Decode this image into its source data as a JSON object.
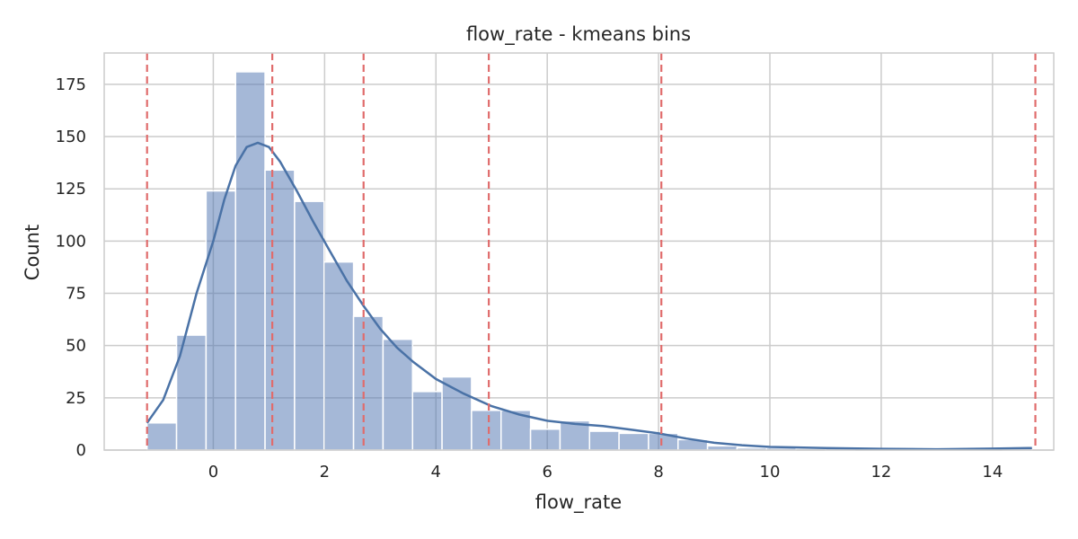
{
  "chart_data": {
    "type": "histogram",
    "title": "flow_rate - kmeans bins",
    "xlabel": "flow_rate",
    "ylabel": "Count",
    "xlim": [
      -1.96,
      15.1
    ],
    "ylim": [
      0,
      190
    ],
    "xticks": [
      0,
      2,
      4,
      6,
      8,
      10,
      12,
      14
    ],
    "yticks": [
      0,
      25,
      50,
      75,
      100,
      125,
      150,
      175
    ],
    "grid": true,
    "bar_color": "#4c72b0",
    "bar_opacity": 0.5,
    "kde_color": "#4a72a6",
    "bin_edge_color": "#e06c6c",
    "bins": [
      {
        "x0": -1.19,
        "x1": -0.66,
        "count": 13
      },
      {
        "x0": -0.66,
        "x1": -0.13,
        "count": 55
      },
      {
        "x0": -0.13,
        "x1": 0.4,
        "count": 124
      },
      {
        "x0": 0.4,
        "x1": 0.93,
        "count": 181
      },
      {
        "x0": 0.93,
        "x1": 1.46,
        "count": 134
      },
      {
        "x0": 1.46,
        "x1": 1.99,
        "count": 119
      },
      {
        "x0": 1.99,
        "x1": 2.52,
        "count": 90
      },
      {
        "x0": 2.52,
        "x1": 3.05,
        "count": 64
      },
      {
        "x0": 3.05,
        "x1": 3.58,
        "count": 53
      },
      {
        "x0": 3.58,
        "x1": 4.11,
        "count": 28
      },
      {
        "x0": 4.11,
        "x1": 4.64,
        "count": 35
      },
      {
        "x0": 4.64,
        "x1": 5.17,
        "count": 19
      },
      {
        "x0": 5.17,
        "x1": 5.7,
        "count": 19
      },
      {
        "x0": 5.7,
        "x1": 6.23,
        "count": 10
      },
      {
        "x0": 6.23,
        "x1": 6.76,
        "count": 14
      },
      {
        "x0": 6.76,
        "x1": 7.29,
        "count": 9
      },
      {
        "x0": 7.29,
        "x1": 7.82,
        "count": 8
      },
      {
        "x0": 7.82,
        "x1": 8.35,
        "count": 8
      },
      {
        "x0": 8.35,
        "x1": 8.88,
        "count": 5
      },
      {
        "x0": 8.88,
        "x1": 9.41,
        "count": 2
      },
      {
        "x0": 9.41,
        "x1": 9.94,
        "count": 1
      },
      {
        "x0": 9.94,
        "x1": 10.47,
        "count": 1
      },
      {
        "x0": 10.47,
        "x1": 11.0,
        "count": 0
      },
      {
        "x0": 11.0,
        "x1": 11.53,
        "count": 1
      },
      {
        "x0": 11.53,
        "x1": 12.06,
        "count": 0
      },
      {
        "x0": 12.06,
        "x1": 12.59,
        "count": 0
      },
      {
        "x0": 12.59,
        "x1": 13.12,
        "count": 0
      },
      {
        "x0": 13.12,
        "x1": 13.65,
        "count": 0
      },
      {
        "x0": 13.65,
        "x1": 14.18,
        "count": 0
      },
      {
        "x0": 14.18,
        "x1": 14.71,
        "count": 1
      }
    ],
    "kde": {
      "x": [
        -1.19,
        -0.9,
        -0.6,
        -0.3,
        0.0,
        0.2,
        0.4,
        0.6,
        0.8,
        1.0,
        1.2,
        1.5,
        1.8,
        2.1,
        2.4,
        2.7,
        3.0,
        3.3,
        3.6,
        4.0,
        4.5,
        5.0,
        5.5,
        6.0,
        6.5,
        7.0,
        7.5,
        8.0,
        8.5,
        9.0,
        9.5,
        10.0,
        11.0,
        12.0,
        13.0,
        14.0,
        14.71
      ],
      "y": [
        13,
        24,
        45,
        75,
        100,
        120,
        136,
        145,
        147,
        145,
        138,
        124,
        109,
        95,
        81,
        69,
        58,
        49,
        42,
        34,
        27,
        21,
        17,
        14,
        12.5,
        11.5,
        9.8,
        8,
        5.5,
        3.5,
        2.3,
        1.5,
        1,
        0.6,
        0.4,
        0.7,
        1
      ]
    },
    "bin_edges": [
      -1.19,
      1.06,
      2.7,
      4.95,
      8.05,
      14.77
    ]
  }
}
